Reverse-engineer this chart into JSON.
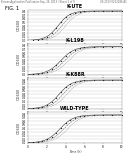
{
  "header_left": "Korean Application Publication",
  "header_mid": "Sep. 26, 2013 / Sheet 1 of 9",
  "header_right": "US 2013/0252286 A1",
  "fig_label": "FIG. 1",
  "panels": [
    {
      "label": "K-UTE",
      "y_label": "OD600"
    },
    {
      "label": "K-L198",
      "y_label": "OD600"
    },
    {
      "label": "K-K88R",
      "y_label": "OD600"
    },
    {
      "label": "WILD-TYPE",
      "y_label": "OD600"
    }
  ],
  "yticks": [
    0.0,
    0.1,
    0.2,
    0.3,
    0.4,
    0.5,
    0.6,
    0.7,
    0.8
  ],
  "xticks": [
    0,
    2,
    4,
    6,
    8,
    10
  ],
  "xlim": [
    0,
    10
  ],
  "ylim": [
    0,
    0.85
  ],
  "curve_params": [
    {
      "x0": 3.2,
      "k": 1.6,
      "ymax": 0.82
    },
    {
      "x0": 3.5,
      "k": 1.4,
      "ymax": 0.78
    },
    {
      "x0": 3.3,
      "k": 1.5,
      "ymax": 0.8
    },
    {
      "x0": 3.4,
      "k": 1.4,
      "ymax": 0.78
    }
  ],
  "bg_color": "#ffffff",
  "grid_color": "#bbbbbb",
  "curve_color": "#333333",
  "header_fontsize": 1.8,
  "fig_label_fontsize": 3.5,
  "panel_title_fontsize": 3.5,
  "tick_fontsize": 2.0,
  "ylabel_fontsize": 2.5,
  "xlabel_fontsize": 2.2
}
